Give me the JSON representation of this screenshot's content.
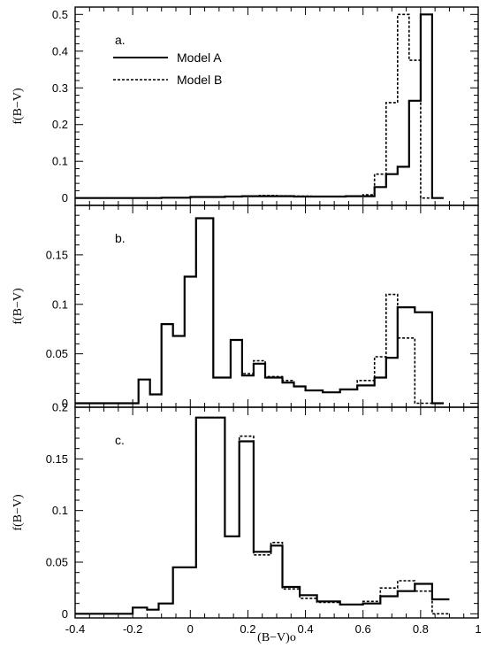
{
  "xlabel": "(B−V)o",
  "legend": [
    {
      "name": "Model A",
      "style": "solid"
    },
    {
      "name": "Model B",
      "style": "dashed"
    }
  ],
  "x_tick_labels": [
    "-0.4",
    "-0.2",
    "0",
    "0.2",
    "0.4",
    "0.6",
    "0.8",
    "1"
  ],
  "chart_data": [
    {
      "type": "step",
      "panel": "a.",
      "ylabel": "f(B−V)",
      "xlim": [
        -0.4,
        1.0
      ],
      "ylim": [
        -0.02,
        0.52
      ],
      "y_ticks": [
        0,
        0.1,
        0.2,
        0.3,
        0.4,
        0.5
      ],
      "y_tick_labels": [
        "0",
        "0.1",
        "0.2",
        "0.3",
        "0.4",
        "0.5"
      ],
      "bin_edges": [
        -0.4,
        -0.1,
        0.0,
        0.06,
        0.12,
        0.18,
        0.24,
        0.3,
        0.36,
        0.42,
        0.48,
        0.54,
        0.6,
        0.64,
        0.68,
        0.72,
        0.76,
        0.8,
        0.84,
        0.88
      ],
      "series": [
        {
          "name": "Model A",
          "values": [
            0,
            0.001,
            0.003,
            0.003,
            0.004,
            0.005,
            0.005,
            0.005,
            0.004,
            0.004,
            0.004,
            0.005,
            0.005,
            0.03,
            0.065,
            0.085,
            0.265,
            0.5,
            0
          ]
        },
        {
          "name": "Model B",
          "values": [
            0,
            0.001,
            0.003,
            0.003,
            0.004,
            0.005,
            0.007,
            0.006,
            0.005,
            0.004,
            0.004,
            0.005,
            0.009,
            0.065,
            0.26,
            0.5,
            0.375,
            0,
            0
          ]
        }
      ]
    },
    {
      "type": "step",
      "panel": "b.",
      "ylabel": "f(B−V)",
      "xlim": [
        -0.4,
        1.0
      ],
      "ylim": [
        -0.004,
        0.2
      ],
      "y_ticks": [
        0,
        0.05,
        0.1,
        0.15
      ],
      "y_tick_labels": [
        "0",
        "0.05",
        "0.1",
        "0.15"
      ],
      "bin_edges": [
        -0.4,
        -0.18,
        -0.14,
        -0.1,
        -0.06,
        -0.02,
        0.02,
        0.08,
        0.14,
        0.18,
        0.22,
        0.26,
        0.32,
        0.36,
        0.4,
        0.46,
        0.52,
        0.58,
        0.64,
        0.68,
        0.72,
        0.78,
        0.84,
        0.88
      ],
      "series": [
        {
          "name": "Model A",
          "values": [
            0,
            0.024,
            0.009,
            0.08,
            0.068,
            0.128,
            0.187,
            0.026,
            0.064,
            0.028,
            0.04,
            0.026,
            0.021,
            0.017,
            0.013,
            0.011,
            0.014,
            0.018,
            0.026,
            0.046,
            0.097,
            0.092,
            0
          ]
        },
        {
          "name": "Model B",
          "values": [
            0,
            0.024,
            0.009,
            0.08,
            0.068,
            0.128,
            0.187,
            0.026,
            0.064,
            0.03,
            0.043,
            0.027,
            0.023,
            0.017,
            0.013,
            0.011,
            0.014,
            0.023,
            0.047,
            0.11,
            0.066,
            0,
            0
          ]
        }
      ]
    },
    {
      "type": "step",
      "panel": "c.",
      "ylabel": "f(B−V)",
      "xlim": [
        -0.4,
        1.0
      ],
      "ylim": [
        -0.004,
        0.2
      ],
      "y_ticks": [
        0,
        0.05,
        0.1,
        0.15,
        0.2
      ],
      "y_tick_labels": [
        "0",
        "0.05",
        "0.1",
        "0.15",
        "0.2"
      ],
      "bin_edges": [
        -0.4,
        -0.2,
        -0.15,
        -0.11,
        -0.06,
        0.02,
        0.12,
        0.17,
        0.22,
        0.28,
        0.32,
        0.38,
        0.44,
        0.52,
        0.6,
        0.66,
        0.72,
        0.78,
        0.84,
        0.9
      ],
      "series": [
        {
          "name": "Model A",
          "values": [
            0,
            0.006,
            0.004,
            0.01,
            0.045,
            0.19,
            0.075,
            0.167,
            0.06,
            0.066,
            0.026,
            0.018,
            0.012,
            0.009,
            0.01,
            0.017,
            0.022,
            0.029,
            0.014
          ]
        },
        {
          "name": "Model B",
          "values": [
            0,
            0.006,
            0.004,
            0.01,
            0.045,
            0.19,
            0.075,
            0.172,
            0.057,
            0.069,
            0.024,
            0.015,
            0.011,
            0.009,
            0.012,
            0.025,
            0.032,
            0.022,
            0
          ]
        }
      ]
    }
  ]
}
